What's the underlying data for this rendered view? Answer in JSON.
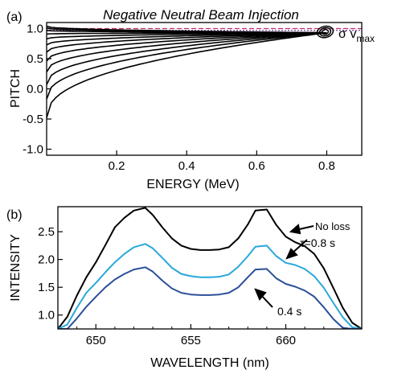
{
  "chart_data": [
    {
      "panel_label": "(a)",
      "type": "line",
      "title": "Negative Neutral Beam Injection",
      "xlabel": "ENERGY (MeV)",
      "ylabel": "PITCH",
      "xlim": [
        0.0,
        0.9
      ],
      "ylim": [
        -1.1,
        1.1
      ],
      "xticks": [
        "0.2",
        "0.4",
        "0.6",
        "0.8"
      ],
      "xtick_values": [
        0.2,
        0.4,
        0.6,
        0.8
      ],
      "yticks": [
        "-1.0",
        "-0.5",
        "0.0",
        "0.5",
        "1.0"
      ],
      "ytick_values": [
        -1.0,
        -0.5,
        0.0,
        0.5,
        1.0
      ],
      "annotation": "σ v",
      "annotation_sub": "max",
      "dashed_line": {
        "y": 1.0,
        "color": "#c0306a"
      },
      "dotted_line": {
        "y": 0.97,
        "color": "#7a3a9a"
      },
      "line_color": "#000000",
      "curve_energy_max": 0.8,
      "curve_end_pitch": 0.93,
      "curve_start_pitch": [
        -0.48,
        -0.17,
        0.07,
        0.28,
        0.46,
        0.61,
        0.73,
        0.83,
        0.91,
        0.97,
        1.01,
        1.04
      ],
      "contour_center": [
        0.8,
        0.95
      ]
    },
    {
      "panel_label": "(b)",
      "type": "line",
      "xlabel": "WAVELENGTH (nm)",
      "ylabel": "INTENSITY",
      "xlim": [
        648,
        664
      ],
      "ylim": [
        0.75,
        2.95
      ],
      "xticks": [
        "650",
        "655",
        "660"
      ],
      "xtick_values": [
        650,
        655,
        660
      ],
      "yticks": [
        "1.0",
        "1.5",
        "2.0",
        "2.5"
      ],
      "ytick_values": [
        1.0,
        1.5,
        2.0,
        2.5
      ],
      "x": [
        648,
        648.5,
        649,
        649.5,
        650,
        650.5,
        651,
        651.5,
        652,
        652.6,
        653,
        653.5,
        654,
        654.5,
        655,
        655.5,
        656,
        656.5,
        657,
        657.5,
        658,
        658.4,
        659,
        659.5,
        660,
        660.5,
        661,
        661.5,
        662,
        662.5,
        663,
        663.5,
        664
      ],
      "series": [
        {
          "name": "No loss",
          "color": "#000000",
          "values": [
            0.75,
            0.97,
            1.35,
            1.68,
            1.95,
            2.26,
            2.58,
            2.75,
            2.88,
            2.93,
            2.8,
            2.58,
            2.38,
            2.25,
            2.19,
            2.17,
            2.17,
            2.18,
            2.22,
            2.38,
            2.63,
            2.88,
            2.9,
            2.62,
            2.41,
            2.31,
            2.24,
            2.1,
            1.84,
            1.49,
            1.13,
            0.86,
            0.75
          ]
        },
        {
          "name": "τ=0.8 s",
          "color": "#29a8d9",
          "values": [
            0.75,
            0.83,
            1.13,
            1.4,
            1.58,
            1.77,
            1.95,
            2.1,
            2.22,
            2.28,
            2.2,
            2.03,
            1.85,
            1.74,
            1.7,
            1.68,
            1.68,
            1.69,
            1.73,
            1.87,
            2.06,
            2.23,
            2.25,
            2.06,
            1.94,
            1.9,
            1.83,
            1.7,
            1.49,
            1.22,
            0.96,
            0.78,
            0.75
          ]
        },
        {
          "name": "0.4 s",
          "color": "#2b4f98",
          "values": [
            0.75,
            0.75,
            0.94,
            1.15,
            1.33,
            1.5,
            1.64,
            1.74,
            1.82,
            1.86,
            1.78,
            1.62,
            1.48,
            1.4,
            1.37,
            1.36,
            1.36,
            1.37,
            1.4,
            1.5,
            1.68,
            1.82,
            1.83,
            1.66,
            1.56,
            1.51,
            1.44,
            1.33,
            1.14,
            0.93,
            0.77,
            0.75,
            0.75
          ]
        }
      ],
      "annotations": [
        "No loss",
        "τ=0.8 s",
        "0.4 s"
      ]
    }
  ]
}
